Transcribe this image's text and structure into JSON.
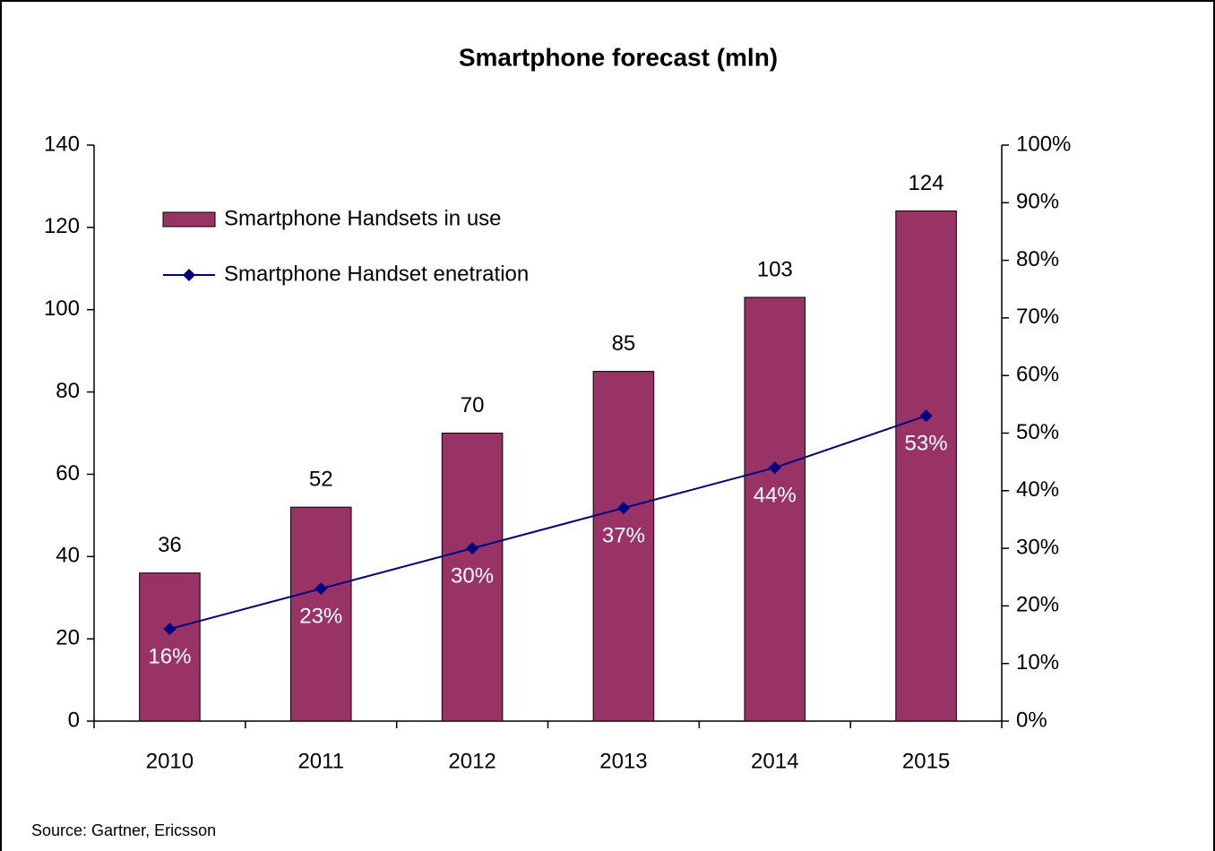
{
  "chart_data": {
    "type": "combo",
    "title": "Smartphone forecast (mln)",
    "categories": [
      "2010",
      "2011",
      "2012",
      "2013",
      "2014",
      "2015"
    ],
    "series": [
      {
        "name": "Smartphone Handsets in use",
        "type": "bar",
        "color": "#993366",
        "values": [
          36,
          52,
          70,
          85,
          103,
          124
        ]
      },
      {
        "name": "Smartphone Handset enetration",
        "type": "line",
        "axis": "y2",
        "color": "#000080",
        "values": [
          16,
          23,
          30,
          37,
          44,
          53
        ],
        "value_labels": [
          "16%",
          "23%",
          "30%",
          "37%",
          "44%",
          "53%"
        ]
      }
    ],
    "ylim": [
      0,
      140
    ],
    "yticks": [
      0,
      20,
      40,
      60,
      80,
      100,
      120,
      140
    ],
    "y2lim": [
      0,
      100
    ],
    "y2ticks": [
      {
        "value": 0,
        "label": "0%"
      },
      {
        "value": 10,
        "label": "10%"
      },
      {
        "value": 20,
        "label": "20%"
      },
      {
        "value": 30,
        "label": "30%"
      },
      {
        "value": 40,
        "label": "40%"
      },
      {
        "value": 50,
        "label": "50%"
      },
      {
        "value": 60,
        "label": "60%"
      },
      {
        "value": 70,
        "label": "70%"
      },
      {
        "value": 80,
        "label": "80%"
      },
      {
        "value": 90,
        "label": "90%"
      },
      {
        "value": 100,
        "label": "100%"
      }
    ],
    "grid": false,
    "legend": "upper left",
    "source": "Source: Gartner, Ericsson"
  }
}
